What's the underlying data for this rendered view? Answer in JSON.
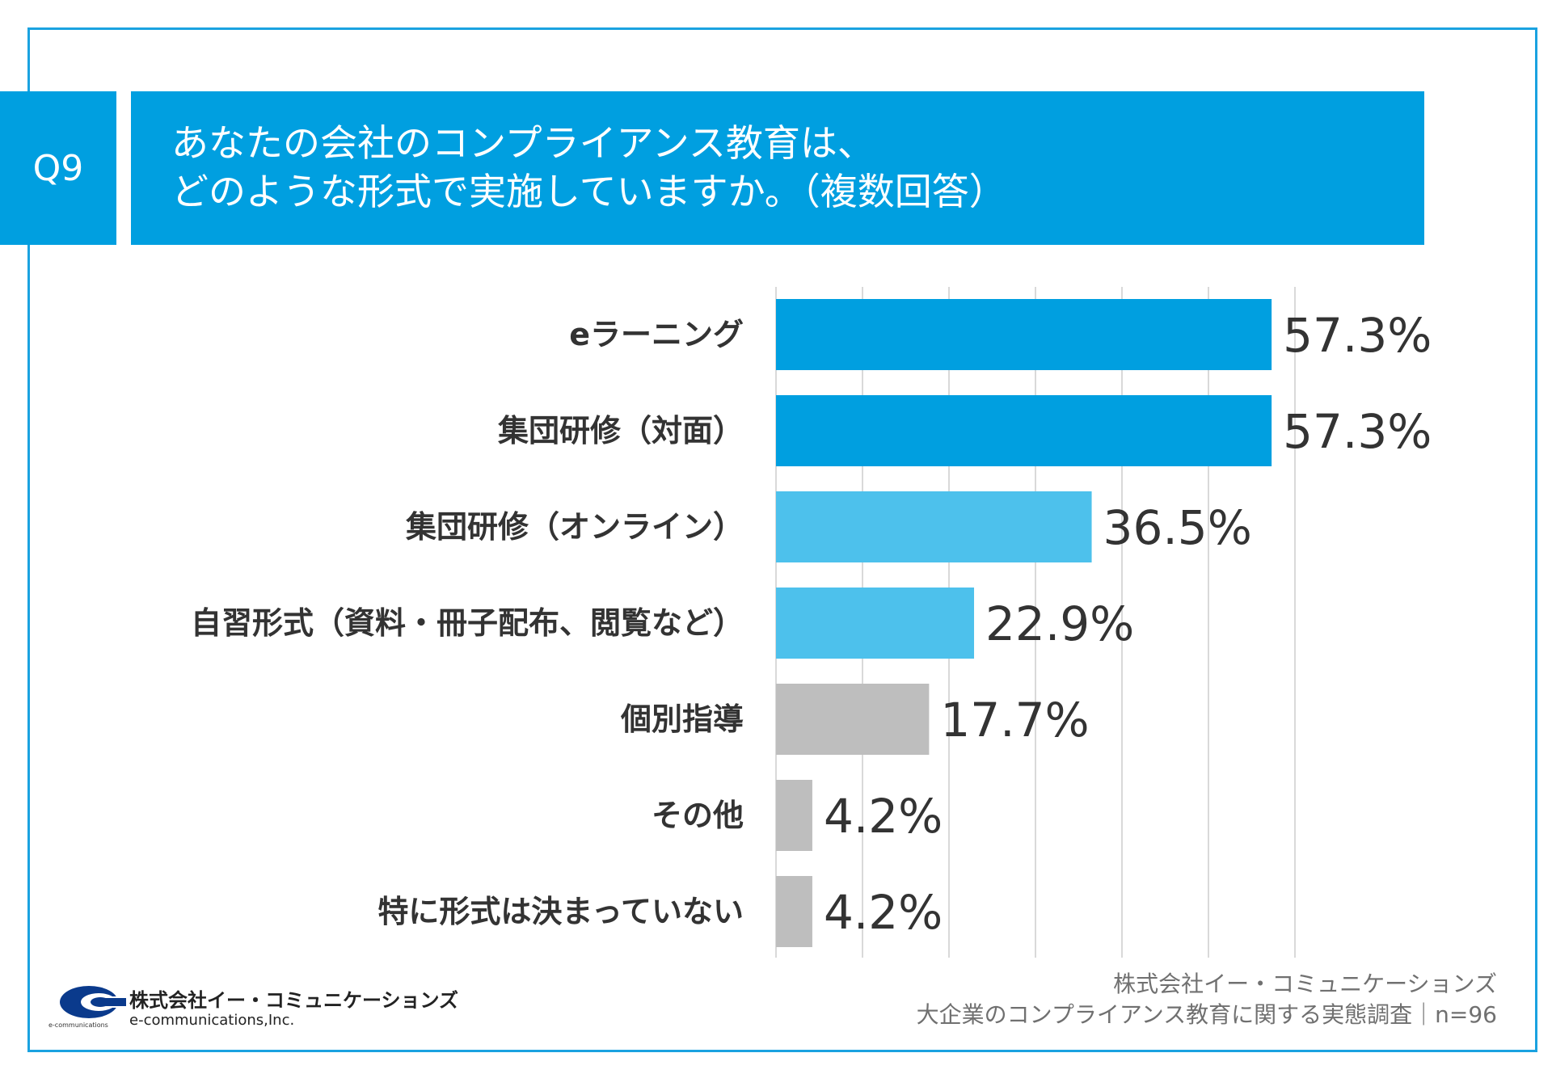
{
  "question": {
    "number": "Q9",
    "line1": "あなたの会社のコンプライアンス教育は、",
    "line2": "どのような形式で実施していますか。（複数回答）"
  },
  "chart_data": {
    "type": "bar",
    "orientation": "horizontal",
    "categories": [
      "eラーニング",
      "集団研修（対面）",
      "集団研修（オンライン）",
      "自習形式（資料・冊子配布、閲覧など）",
      "個別指導",
      "その他",
      "特に形式は決まっていない"
    ],
    "values": [
      57.3,
      57.3,
      36.5,
      22.9,
      17.7,
      4.2,
      4.2
    ],
    "labels": [
      "57.3%",
      "57.3%",
      "36.5%",
      "22.9%",
      "17.7%",
      "4.2%",
      "4.2%"
    ],
    "xlim": [
      0,
      60
    ],
    "grid_step": 10,
    "grid": true,
    "unit": "%",
    "colors": [
      "#009fe0",
      "#009fe0",
      "#4dc1ec",
      "#4dc1ec",
      "#bebebe",
      "#bebebe",
      "#bebebe"
    ],
    "grid_color": "#d9d9d9"
  },
  "footer": {
    "logo_jp": "株式会社イー・コミュニケーションズ",
    "logo_en": "e-communications,Inc.",
    "logo_small": "e-communications",
    "source_company": "株式会社イー・コミュニケーションズ",
    "source_survey": "大企業のコンプライアンス教育に関する実態調査｜n=96"
  }
}
